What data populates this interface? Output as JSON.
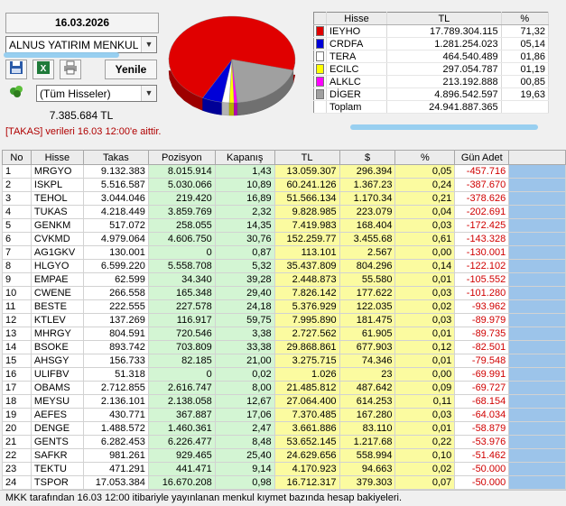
{
  "header": {
    "date": "16.03.2026",
    "member_select": "ALNUS YATIRIM MENKUL",
    "refresh_label": "Yenile",
    "stock_filter": "(Tüm Hisseler)",
    "total_tl": "7.385.684 TL",
    "takas_note": "[TAKAS] verileri 16.03 12:00'e aittir."
  },
  "legend": {
    "columns": [
      "Hisse",
      "TL",
      "%"
    ],
    "rows": [
      {
        "color": "#e00000",
        "name": "IEYHO",
        "tl": "17.789.304.115",
        "pct": "71,32"
      },
      {
        "color": "#0000d8",
        "name": "CRDFA",
        "tl": "1.281.254.023",
        "pct": "05,14"
      },
      {
        "color": "#ffffff",
        "name": "TERA",
        "tl": "464.540.489",
        "pct": "01,86"
      },
      {
        "color": "#ffff00",
        "name": "ECILC",
        "tl": "297.054.787",
        "pct": "01,19"
      },
      {
        "color": "#ff00ff",
        "name": "ALKLC",
        "tl": "213.192.888",
        "pct": "00,85"
      },
      {
        "color": "#a0a0a0",
        "name": "DİGER",
        "tl": "4.896.542.597",
        "pct": "19,63"
      }
    ],
    "total_label": "Toplam",
    "total_tl": "24.941.887.365"
  },
  "chart_data": {
    "type": "pie",
    "labels": [
      "IEYHO",
      "CRDFA",
      "TERA",
      "ECILC",
      "ALKLC",
      "DİGER"
    ],
    "values": [
      71.32,
      5.14,
      1.86,
      1.19,
      0.85,
      19.63
    ],
    "colors": [
      "#e00000",
      "#0000d8",
      "#ffffff",
      "#ffff00",
      "#ff00ff",
      "#a0a0a0"
    ]
  },
  "grid": {
    "columns": [
      "No",
      "Hisse",
      "Takas",
      "Pozisyon",
      "Kapanış",
      "TL",
      "$",
      "%",
      "Gün Adet"
    ],
    "rows": [
      [
        "1",
        "MRGYO",
        "9.132.383",
        "8.015.914",
        "1,43",
        "13.059.307",
        "296.394",
        "0,05",
        "-457.716"
      ],
      [
        "2",
        "ISKPL",
        "5.516.587",
        "5.030.066",
        "10,89",
        "60.241.126",
        "1.367.23",
        "0,24",
        "-387.670"
      ],
      [
        "3",
        "TEHOL",
        "3.044.046",
        "219.420",
        "16,89",
        "51.566.134",
        "1.170.34",
        "0,21",
        "-378.626"
      ],
      [
        "4",
        "TUKAS",
        "4.218.449",
        "3.859.769",
        "2,32",
        "9.828.985",
        "223.079",
        "0,04",
        "-202.691"
      ],
      [
        "5",
        "GENKM",
        "517.072",
        "258.055",
        "14,35",
        "7.419.983",
        "168.404",
        "0,03",
        "-172.425"
      ],
      [
        "6",
        "CVKMD",
        "4.979.064",
        "4.606.750",
        "30,76",
        "152.259.77",
        "3.455.68",
        "0,61",
        "-143.328"
      ],
      [
        "7",
        "AG1GKV",
        "130.001",
        "0",
        "0,87",
        "113.101",
        "2.567",
        "0,00",
        "-130.001"
      ],
      [
        "8",
        "HLGYO",
        "6.599.220",
        "5.558.708",
        "5,32",
        "35.437.809",
        "804.296",
        "0,14",
        "-122.102"
      ],
      [
        "9",
        "EMPAE",
        "62.599",
        "34.340",
        "39,28",
        "2.448.873",
        "55.580",
        "0,01",
        "-105.552"
      ],
      [
        "10",
        "CWENE",
        "266.558",
        "165.348",
        "29,40",
        "7.826.142",
        "177.622",
        "0,03",
        "-101.280"
      ],
      [
        "11",
        "BESTE",
        "222.555",
        "227.578",
        "24,18",
        "5.376.929",
        "122.035",
        "0,02",
        "-93.962"
      ],
      [
        "12",
        "KTLEV",
        "137.269",
        "116.917",
        "59,75",
        "7.995.890",
        "181.475",
        "0,03",
        "-89.979"
      ],
      [
        "13",
        "MHRGY",
        "804.591",
        "720.546",
        "3,38",
        "2.727.562",
        "61.905",
        "0,01",
        "-89.735"
      ],
      [
        "14",
        "BSOKE",
        "893.742",
        "703.809",
        "33,38",
        "29.868.861",
        "677.903",
        "0,12",
        "-82.501"
      ],
      [
        "15",
        "AHSGY",
        "156.733",
        "82.185",
        "21,00",
        "3.275.715",
        "74.346",
        "0,01",
        "-79.548"
      ],
      [
        "16",
        "ULIFBV",
        "51.318",
        "0",
        "0,02",
        "1.026",
        "23",
        "0,00",
        "-69.991"
      ],
      [
        "17",
        "OBAMS",
        "2.712.855",
        "2.616.747",
        "8,00",
        "21.485.812",
        "487.642",
        "0,09",
        "-69.727"
      ],
      [
        "18",
        "MEYSU",
        "2.136.101",
        "2.138.058",
        "12,67",
        "27.064.400",
        "614.253",
        "0,11",
        "-68.154"
      ],
      [
        "19",
        "AEFES",
        "430.771",
        "367.887",
        "17,06",
        "7.370.485",
        "167.280",
        "0,03",
        "-64.034"
      ],
      [
        "20",
        "DENGE",
        "1.488.572",
        "1.460.361",
        "2,47",
        "3.661.886",
        "83.110",
        "0,01",
        "-58.879"
      ],
      [
        "21",
        "GENTS",
        "6.282.453",
        "6.226.477",
        "8,48",
        "53.652.145",
        "1.217.68",
        "0,22",
        "-53.976"
      ],
      [
        "22",
        "SAFKR",
        "981.261",
        "929.465",
        "25,40",
        "24.629.656",
        "558.994",
        "0,10",
        "-51.462"
      ],
      [
        "23",
        "TEKTU",
        "471.291",
        "441.471",
        "9,14",
        "4.170.923",
        "94.663",
        "0,02",
        "-50.000"
      ],
      [
        "24",
        "TSPOR",
        "17.053.384",
        "16.670.208",
        "0,98",
        "16.712.317",
        "379.303",
        "0,07",
        "-50.000"
      ]
    ]
  },
  "footer": "MKK tarafından 16.03 12:00 itibariyle yayınlanan menkul kıymet bazında hesap bakiyeleri."
}
